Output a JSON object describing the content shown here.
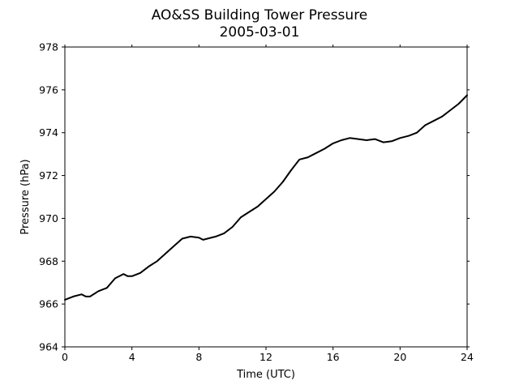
{
  "chart_data": {
    "type": "line",
    "title": "AO&SS Building Tower Pressure",
    "subtitle": "2005-03-01",
    "xlabel": "Time (UTC)",
    "ylabel": "Pressure (hPa)",
    "xlim": [
      0,
      24
    ],
    "ylim": [
      964,
      978
    ],
    "xticks": [
      "0",
      "4",
      "8",
      "12",
      "16",
      "20",
      "24"
    ],
    "yticks": [
      "964",
      "966",
      "968",
      "970",
      "972",
      "974",
      "976",
      "978"
    ],
    "grid": false,
    "line_color": "#000000",
    "series": [
      {
        "x": [
          0,
          0.5,
          1.0,
          1.25,
          1.5,
          2.0,
          2.5,
          3.0,
          3.5,
          3.75,
          4.0,
          4.5,
          5.0,
          5.5,
          6.0,
          6.5,
          7.0,
          7.5,
          8.0,
          8.25,
          8.5,
          9.0,
          9.5,
          10.0,
          10.5,
          11.0,
          11.5,
          12.0,
          12.5,
          13.0,
          13.5,
          14.0,
          14.5,
          15.0,
          15.5,
          16.0,
          16.5,
          17.0,
          17.5,
          18.0,
          18.5,
          19.0,
          19.5,
          20.0,
          20.5,
          21.0,
          21.5,
          22.0,
          22.5,
          23.0,
          23.5,
          24.0
        ],
        "y": [
          966.2,
          966.35,
          966.45,
          966.35,
          966.35,
          966.6,
          966.75,
          967.2,
          967.4,
          967.3,
          967.3,
          967.45,
          967.75,
          968.0,
          968.35,
          968.7,
          969.05,
          969.15,
          969.1,
          969.0,
          969.05,
          969.15,
          969.3,
          969.6,
          970.05,
          970.3,
          970.55,
          970.9,
          971.25,
          971.7,
          972.25,
          972.75,
          972.85,
          973.05,
          973.25,
          973.5,
          973.65,
          973.75,
          973.7,
          973.65,
          973.7,
          973.55,
          973.6,
          973.75,
          973.85,
          974.0,
          974.35,
          974.55,
          974.75,
          975.05,
          975.35,
          975.75
        ]
      }
    ]
  }
}
